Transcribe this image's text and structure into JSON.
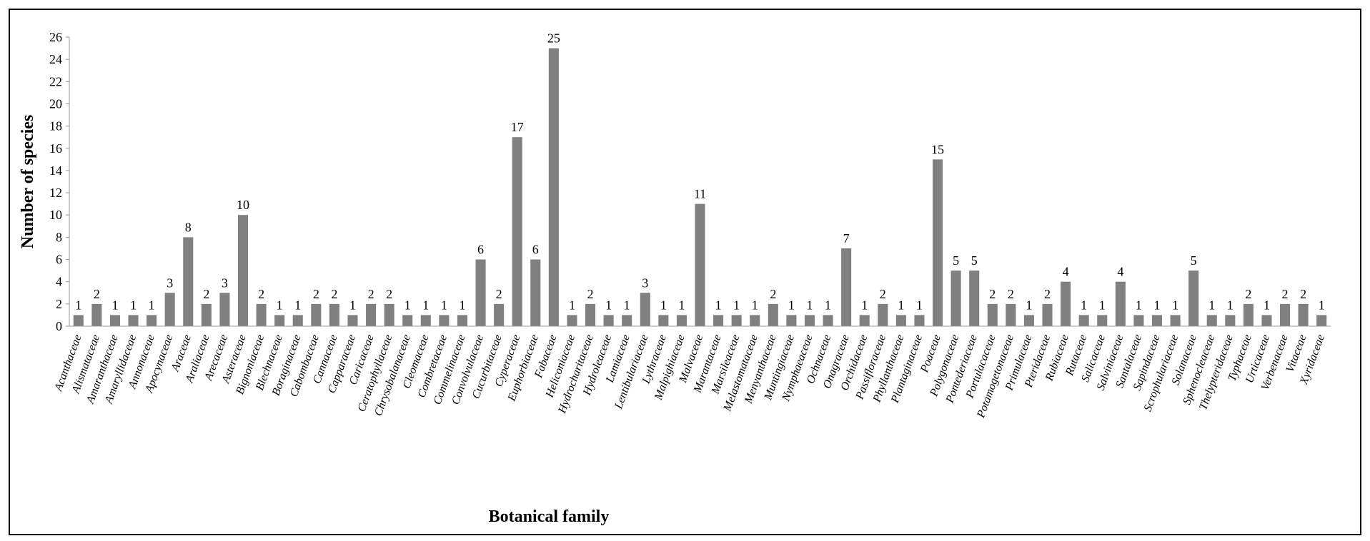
{
  "chart_data": {
    "type": "bar",
    "xlabel": "Botanical family",
    "ylabel": "Number of species",
    "ylim": [
      0,
      26
    ],
    "yticks": [
      0,
      2,
      4,
      6,
      8,
      10,
      12,
      14,
      16,
      18,
      20,
      22,
      24,
      26
    ],
    "grid": false,
    "legend": "none",
    "bar_color": "#808080",
    "categories": [
      "Acanthaceae",
      "Alismataceae",
      "Amaranthaceae",
      "Amaryllidaceae",
      "Annonaceae",
      "Apocynaceae",
      "Araceae",
      "Araliaceae",
      "Arecaceae",
      "Asteraceae",
      "Bignoniaceae",
      "Blechnaceae",
      "Boraginaceae",
      "Cabombaceae",
      "Cannaceae",
      "Capparaceae",
      "Caricaceae",
      "Ceratophyllaceae",
      "Chrysobalanaceae",
      "Cleomaceae",
      "Combretaceae",
      "Commelinaceae",
      "Convolvulaceae",
      "Cucurbitaceae",
      "Cyperaceae",
      "Euphorbiaceae",
      "Fabaceae",
      "Heliconiaceae",
      "Hydrocharitaceae",
      "Hydroleaceae",
      "Lamiaceae",
      "Lentibulariaceae",
      "Lythraceae",
      "Malpighiaceae",
      "Malvaceae",
      "Marantaceae",
      "Marsileaceae",
      "Melastomataceae",
      "Menyanthaceae",
      "Muntingiaceae",
      "Nymphaeaceae",
      "Ochnaceae",
      "Onagraceae",
      "Orchidaceae",
      "Passifloraceae",
      "Phyllanthaceae",
      "Plantaginaceae",
      "Poaceae",
      "Polygonaceae",
      "Pontederiaceae",
      "Portulacaceae",
      "Potamogetonaceae",
      "Primulaceae",
      "Pteridaceae",
      "Rubiaceae",
      "Rutaceae",
      "Salicaceae",
      "Salviniaceae",
      "Santalaceae",
      "Sapindaceae",
      "Scrophulariaceae",
      "Solanaceae",
      "Sphenocleaceae",
      "Thelypteridaceae",
      "Typhaceae",
      "Urticaceae",
      "Verbenaceae",
      "Vitaceae",
      "Xyridaceae"
    ],
    "values": [
      1,
      2,
      1,
      1,
      1,
      3,
      8,
      2,
      3,
      10,
      2,
      1,
      1,
      2,
      2,
      1,
      2,
      2,
      1,
      1,
      1,
      1,
      6,
      2,
      17,
      6,
      25,
      1,
      2,
      1,
      1,
      3,
      1,
      1,
      11,
      1,
      1,
      1,
      2,
      1,
      1,
      1,
      7,
      1,
      2,
      1,
      1,
      15,
      5,
      5,
      2,
      2,
      1,
      2,
      4,
      1,
      1,
      4,
      1,
      1,
      1,
      5,
      1,
      1,
      2,
      1,
      2,
      2,
      1
    ]
  }
}
